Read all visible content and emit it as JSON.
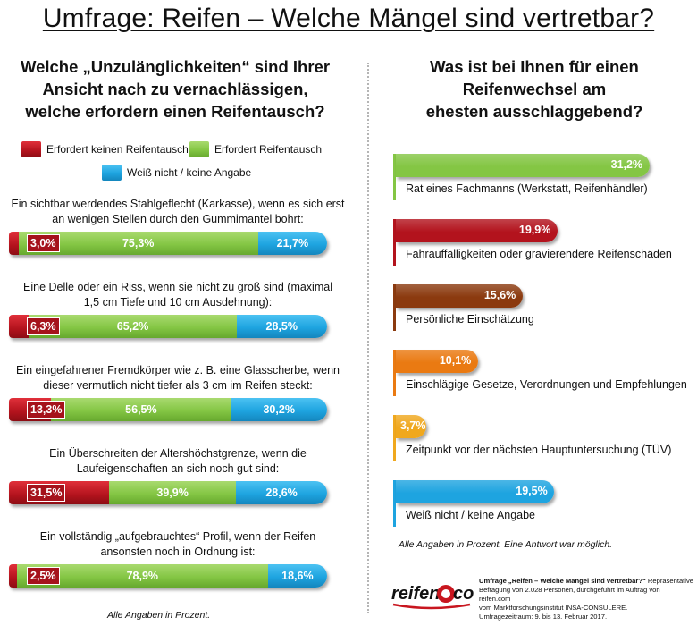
{
  "title": "Umfrage: Reifen – Welche Mängel sind vertretbar?",
  "left": {
    "question_lines": [
      "Welche „Unzulänglichkeiten“ sind Ihrer",
      "Ansicht nach zu vernachlässigen,",
      "welche erfordern einen Reifentausch?"
    ],
    "footnote": "Alle Angaben in Prozent."
  },
  "right": {
    "question_lines": [
      "Was ist bei Ihnen für einen",
      "Reifenwechsel am",
      "ehesten ausschlaggebend?"
    ],
    "footnote": "Alle Angaben in Prozent. Eine Antwort war möglich."
  },
  "source": {
    "line1_bold": "Umfrage „Reifen – Welche Mängel sind vertretbar?“",
    "line1_rest": " Repräsentative",
    "line2": "Befragung von 2.028 Personen, durchgeführt im Auftrag von reifen.com",
    "line3": "vom Marktforschungsinstitut INSA-CONSULERE.",
    "line4": "Umfragezeitraum: 9. bis 13. Februar 2017."
  },
  "logo": {
    "left": "reifen",
    "right": "com"
  },
  "colors": {
    "red": "#b3131d",
    "green": "#84c644",
    "blue": "#1ea4e0",
    "brown": "#8b3a0f",
    "orange": "#ea7a12",
    "amber": "#f0a81e"
  },
  "chart_data": [
    {
      "type": "bar",
      "stacked": true,
      "orientation": "horizontal",
      "legend": [
        {
          "label": "Erfordert keinen Reifentausch",
          "color": "#b3131d"
        },
        {
          "label": "Erfordert Reifentausch",
          "color": "#84c644"
        },
        {
          "label": "Weiß nicht / keine Angabe",
          "color": "#1ea4e0"
        }
      ],
      "categories": [
        [
          "Ein sichtbar werdendes Stahlgeflecht (Karkasse), wenn es sich erst",
          "an wenigen Stellen durch den Gummimantel bohrt:"
        ],
        [
          "Eine Delle oder ein Riss, wenn sie nicht zu groß sind (maximal",
          "1,5 cm Tiefe und 10 cm Ausdehnung):"
        ],
        [
          "Ein eingefahrener Fremdkörper wie z. B. eine Glasscherbe, wenn",
          "dieser vermutlich nicht tiefer als 3 cm im Reifen steckt:"
        ],
        [
          "Ein Überschreiten der Altershöchstgrenze, wenn die",
          "Laufeigenschaften an sich noch gut sind:"
        ],
        [
          "Ein vollständig „aufgebrauchtes“ Profil, wenn der Reifen",
          "ansonsten noch in Ordnung ist:"
        ]
      ],
      "series": [
        {
          "name": "Erfordert keinen Reifentausch",
          "values": [
            3.0,
            6.3,
            13.3,
            31.5,
            2.5
          ],
          "labels": [
            "3,0%",
            "6,3%",
            "13,3%",
            "31,5%",
            "2,5%"
          ]
        },
        {
          "name": "Erfordert Reifentausch",
          "values": [
            75.3,
            65.2,
            56.5,
            39.9,
            78.9
          ],
          "labels": [
            "75,3%",
            "65,2%",
            "56,5%",
            "39,9%",
            "78,9%"
          ]
        },
        {
          "name": "Weiß nicht / keine Angabe",
          "values": [
            21.7,
            28.5,
            30.2,
            28.6,
            18.6
          ],
          "labels": [
            "21,7%",
            "28,5%",
            "30,2%",
            "28,6%",
            "18,6%"
          ]
        }
      ]
    },
    {
      "type": "bar",
      "orientation": "horizontal",
      "xlim": [
        0,
        33
      ],
      "categories": [
        "Rat eines Fachmanns (Werkstatt, Reifenhändler)",
        "Fahrauffälligkeiten oder gravierendere Reifenschäden",
        "Persönliche Einschätzung",
        "Einschlägige Gesetze, Verordnungen und Empfehlungen",
        "Zeitpunkt vor der nächsten Hauptuntersuchung (TÜV)",
        "Weiß nicht / keine Angabe"
      ],
      "values": [
        31.2,
        19.9,
        15.6,
        10.1,
        3.7,
        19.5
      ],
      "labels": [
        "31,2%",
        "19,9%",
        "15,6%",
        "10,1%",
        "3,7%",
        "19,5%"
      ],
      "colors": [
        "#84c644",
        "#b3131d",
        "#8b3a0f",
        "#ea7a12",
        "#f0a81e",
        "#1ea4e0"
      ]
    }
  ]
}
